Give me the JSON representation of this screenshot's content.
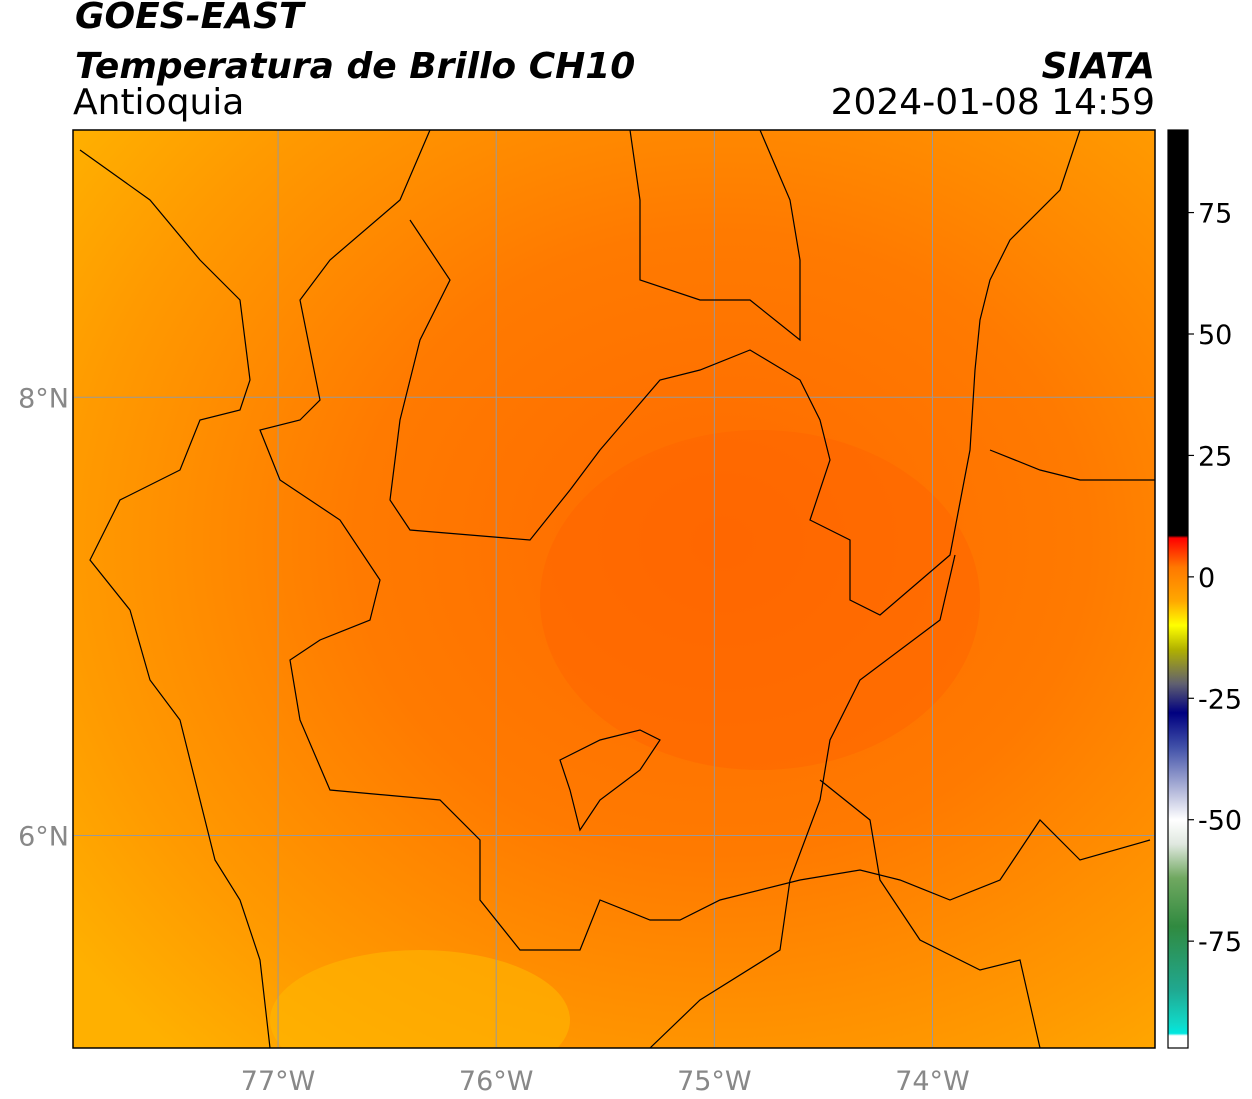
{
  "header": {
    "satellite": "GOES-EAST",
    "product": "Temperatura de Brillo CH10",
    "region": "Antioquia",
    "agency": "SIATA",
    "datetime": "2024-01-08 14:59"
  },
  "chart_data": {
    "type": "map",
    "xlim": [
      -77.94,
      -72.98
    ],
    "ylim": [
      5.03,
      9.22
    ],
    "xticks": [
      {
        "value": -77,
        "label": "77°W"
      },
      {
        "value": -76,
        "label": "76°W"
      },
      {
        "value": -75,
        "label": "75°W"
      },
      {
        "value": -74,
        "label": "74°W"
      }
    ],
    "yticks": [
      {
        "value": 6,
        "label": "6°N"
      },
      {
        "value": 8,
        "label": "8°N"
      }
    ],
    "grid": true,
    "colorbar": {
      "lim": [
        -97,
        92
      ],
      "ticks": [
        -75,
        -50,
        -25,
        0,
        25,
        50,
        75
      ],
      "stops": [
        {
          "value": -97,
          "color": "#ffffff"
        },
        {
          "value": -94.5,
          "color": "#ffffff"
        },
        {
          "value": -94,
          "color": "#00e8e0"
        },
        {
          "value": -92,
          "color": "#10d8c8"
        },
        {
          "value": -85,
          "color": "#20a890"
        },
        {
          "value": -72,
          "color": "#308a40"
        },
        {
          "value": -62,
          "color": "#70a860"
        },
        {
          "value": -55,
          "color": "#e0e8e0"
        },
        {
          "value": -50,
          "color": "#ffffff"
        },
        {
          "value": -45,
          "color": "#c0c4e0"
        },
        {
          "value": -35,
          "color": "#4050a8"
        },
        {
          "value": -28,
          "color": "#000080"
        },
        {
          "value": -22,
          "color": "#606070"
        },
        {
          "value": -15,
          "color": "#b0b000"
        },
        {
          "value": -10,
          "color": "#ffff00"
        },
        {
          "value": -5,
          "color": "#ffa800"
        },
        {
          "value": 2,
          "color": "#ff7800"
        },
        {
          "value": 6,
          "color": "#ff2800"
        },
        {
          "value": 8,
          "color": "#ff0000"
        },
        {
          "value": 8.5,
          "color": "#000000"
        },
        {
          "value": 92,
          "color": "#000000"
        }
      ]
    }
  }
}
